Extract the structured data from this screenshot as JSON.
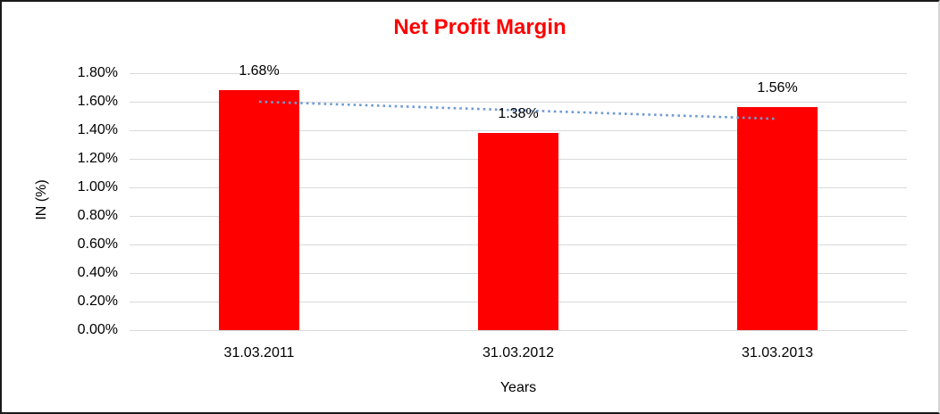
{
  "chart_data": {
    "type": "bar",
    "title": "Net Profit Margin",
    "title_color": "#ff0000",
    "categories": [
      "31.03.2011",
      "31.03.2012",
      "31.03.2013"
    ],
    "values": [
      1.68,
      1.38,
      1.56
    ],
    "data_labels": [
      "1.68%",
      "1.38%",
      "1.56%"
    ],
    "xlabel": "Years",
    "ylabel": "IN (%)",
    "ylim": [
      0,
      1.8
    ],
    "ytick_labels": [
      "0.00%",
      "0.20%",
      "0.40%",
      "0.60%",
      "0.80%",
      "1.00%",
      "1.20%",
      "1.40%",
      "1.60%",
      "1.80%"
    ],
    "grid": true,
    "gridline_color": "#d9d9d9",
    "bar_color": "#ff0000",
    "label_color": "#000000",
    "legend": "none",
    "trendline": {
      "type": "linear",
      "style": "dotted",
      "color": "#6f9bd1",
      "fitted_values": [
        1.6,
        1.54,
        1.48
      ]
    }
  }
}
